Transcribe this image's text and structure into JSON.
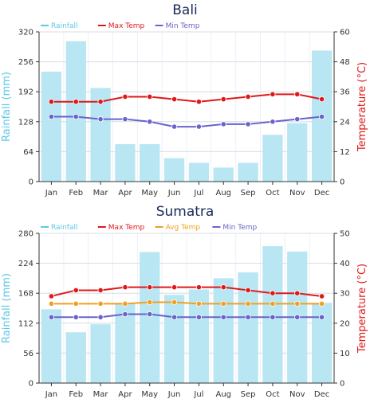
{
  "chart_data": [
    {
      "type": "bar+line",
      "title": "Bali",
      "categories": [
        "Jan",
        "Feb",
        "Mar",
        "Apr",
        "May",
        "Jun",
        "Jul",
        "Aug",
        "Sep",
        "Oct",
        "Nov",
        "Dec"
      ],
      "y_left": {
        "label": "Rainfall (mm)",
        "min": 0,
        "max": 320,
        "ticks": [
          0,
          64,
          128,
          192,
          256,
          320
        ]
      },
      "y_right": {
        "label": "Temperature (°C)",
        "min": 0,
        "max": 60,
        "ticks": [
          0,
          12,
          24,
          36,
          48,
          60
        ]
      },
      "legend": {
        "placement": "top-left"
      },
      "grid": true,
      "series": [
        {
          "name": "Rainfall",
          "kind": "bar",
          "axis": "left",
          "color": "#b9e6f3",
          "legend_color": "#5bc8e6",
          "values": [
            235,
            300,
            200,
            80,
            80,
            50,
            40,
            30,
            40,
            100,
            125,
            280
          ]
        },
        {
          "name": "Max Temp",
          "kind": "line",
          "axis": "right",
          "color": "#e0181a",
          "values": [
            32,
            32,
            32,
            34,
            34,
            33,
            32,
            33,
            34,
            35,
            35,
            33
          ]
        },
        {
          "name": "Min Temp",
          "kind": "line",
          "axis": "right",
          "color": "#6a63c9",
          "values": [
            26,
            26,
            25,
            25,
            24,
            22,
            22,
            23,
            23,
            24,
            25,
            26
          ]
        }
      ]
    },
    {
      "type": "bar+line",
      "title": "Sumatra",
      "categories": [
        "Jan",
        "Feb",
        "Mar",
        "Apr",
        "May",
        "Jun",
        "Jul",
        "Aug",
        "Sep",
        "Oct",
        "Nov",
        "Dec"
      ],
      "y_left": {
        "label": "Rainfall (mm)",
        "min": 0,
        "max": 280,
        "ticks": [
          0,
          56,
          112,
          168,
          224,
          280
        ]
      },
      "y_right": {
        "label": "Temperature (°C)",
        "min": 0,
        "max": 50,
        "ticks": [
          0,
          10,
          20,
          30,
          40,
          50
        ]
      },
      "legend": {
        "placement": "top-left"
      },
      "grid": true,
      "series": [
        {
          "name": "Rainfall",
          "kind": "bar",
          "axis": "left",
          "color": "#b9e6f3",
          "legend_color": "#5bc8e6",
          "values": [
            138,
            95,
            110,
            150,
            245,
            165,
            175,
            196,
            207,
            256,
            246,
            150
          ]
        },
        {
          "name": "Max Temp",
          "kind": "line",
          "axis": "right",
          "color": "#e0181a",
          "values": [
            29,
            31,
            31,
            32,
            32,
            32,
            32,
            32,
            31,
            30,
            30,
            29
          ]
        },
        {
          "name": "Avg Temp",
          "kind": "line",
          "axis": "right",
          "color": "#f0a020",
          "values": [
            26.5,
            26.5,
            26.5,
            26.5,
            27,
            27,
            26.5,
            26.5,
            26.5,
            26.5,
            26.5,
            26.5
          ]
        },
        {
          "name": "Min Temp",
          "kind": "line",
          "axis": "right",
          "color": "#6a63c9",
          "values": [
            22,
            22,
            22,
            23,
            23,
            22,
            22,
            22,
            22,
            22,
            22,
            22
          ]
        }
      ]
    }
  ]
}
